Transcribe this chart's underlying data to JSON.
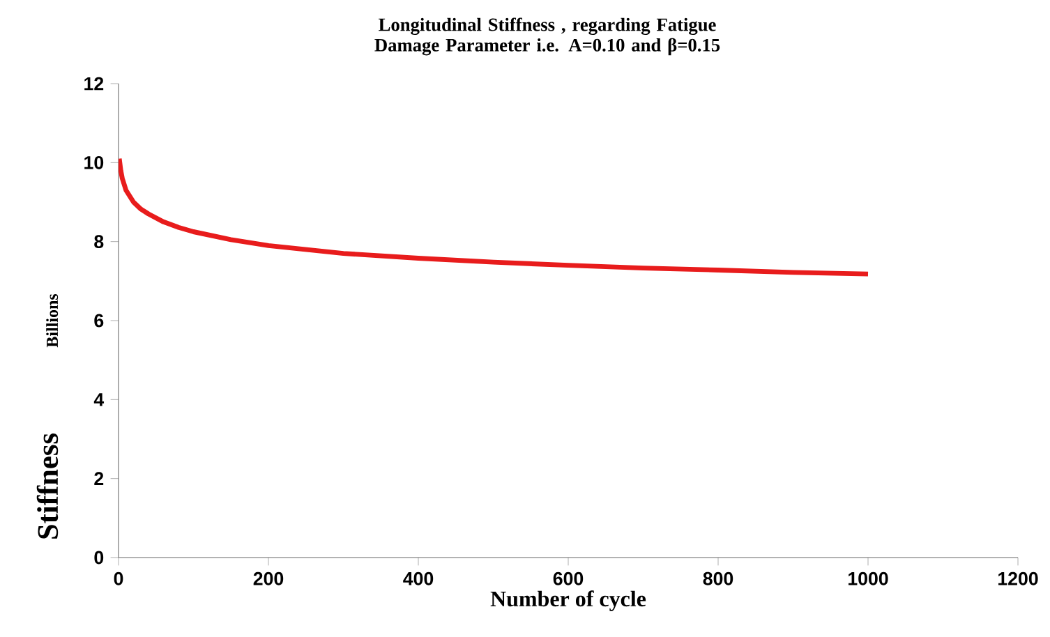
{
  "chart_data": {
    "type": "line",
    "title": "Longitudinal Stiffness , regarding Fatigue Damage Parameter i.e.  A=0.10  and β=0.15",
    "xlabel": "Number  of cycle",
    "ylabel": "Stiffness",
    "annotations": [
      "Billions"
    ],
    "x": [
      1,
      3,
      5,
      10,
      20,
      30,
      40,
      60,
      80,
      100,
      150,
      200,
      300,
      400,
      500,
      600,
      700,
      800,
      900,
      1000
    ],
    "series": [
      {
        "color": "#e81c1c",
        "values": [
          10.1,
          9.8,
          9.6,
          9.3,
          9.0,
          8.82,
          8.7,
          8.5,
          8.36,
          8.25,
          8.05,
          7.9,
          7.7,
          7.58,
          7.48,
          7.4,
          7.33,
          7.28,
          7.22,
          7.18
        ]
      }
    ],
    "xlim": [
      0,
      1200
    ],
    "xticks": [
      0,
      200,
      400,
      600,
      800,
      1000,
      1200
    ],
    "ylim": [
      0,
      12
    ],
    "yticks": [
      0,
      2,
      4,
      6,
      8,
      10,
      12
    ],
    "grid": false,
    "marker": "none",
    "line_style": "solid"
  }
}
